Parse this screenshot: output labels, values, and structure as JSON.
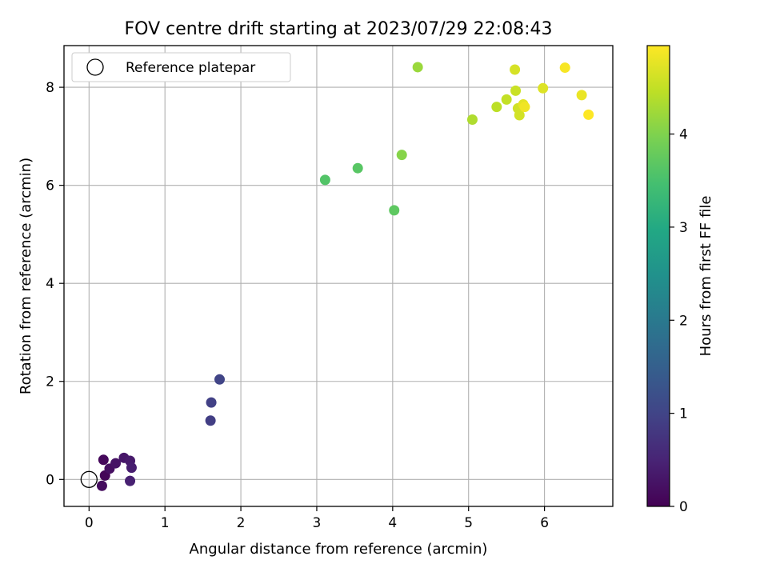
{
  "chart_data": {
    "type": "scatter",
    "title": "FOV centre drift starting at 2023/07/29 22:08:43",
    "xlabel": "Angular distance from reference (arcmin)",
    "ylabel": "Rotation from reference (arcmin)",
    "xlim": [
      -0.33,
      6.9
    ],
    "ylim": [
      -0.55,
      8.85
    ],
    "xticks": [
      0,
      1,
      2,
      3,
      4,
      5,
      6
    ],
    "yticks": [
      0,
      2,
      4,
      6,
      8
    ],
    "grid": true,
    "legend": {
      "placement": "top-left",
      "entries": [
        "Reference platepar"
      ]
    },
    "reference_point": {
      "x": 0,
      "y": 0
    },
    "colorbar": {
      "label": "Hours from first FF file",
      "colormap": "viridis",
      "range": [
        0,
        4.95
      ],
      "ticks": [
        0,
        1,
        2,
        3,
        4
      ]
    },
    "points": [
      {
        "x": 0.19,
        "y": 0.4,
        "c": 0.1
      },
      {
        "x": 0.21,
        "y": 0.08,
        "c": 0.05
      },
      {
        "x": 0.17,
        "y": -0.13,
        "c": 0.15
      },
      {
        "x": 0.27,
        "y": 0.22,
        "c": 0.2
      },
      {
        "x": 0.35,
        "y": 0.33,
        "c": 0.25
      },
      {
        "x": 0.46,
        "y": 0.44,
        "c": 0.3
      },
      {
        "x": 0.54,
        "y": 0.38,
        "c": 0.35
      },
      {
        "x": 0.56,
        "y": 0.24,
        "c": 0.4
      },
      {
        "x": 0.54,
        "y": -0.03,
        "c": 0.45
      },
      {
        "x": 1.6,
        "y": 1.2,
        "c": 0.9
      },
      {
        "x": 1.61,
        "y": 1.57,
        "c": 0.95
      },
      {
        "x": 1.72,
        "y": 2.04,
        "c": 1.0
      },
      {
        "x": 3.11,
        "y": 6.11,
        "c": 3.6
      },
      {
        "x": 3.54,
        "y": 6.35,
        "c": 3.65
      },
      {
        "x": 4.02,
        "y": 5.49,
        "c": 3.7
      },
      {
        "x": 4.12,
        "y": 6.62,
        "c": 4.05
      },
      {
        "x": 4.33,
        "y": 8.41,
        "c": 4.2
      },
      {
        "x": 5.05,
        "y": 7.34,
        "c": 4.35
      },
      {
        "x": 5.37,
        "y": 7.6,
        "c": 4.45
      },
      {
        "x": 5.5,
        "y": 7.75,
        "c": 4.5
      },
      {
        "x": 5.62,
        "y": 7.93,
        "c": 4.55
      },
      {
        "x": 5.61,
        "y": 8.36,
        "c": 4.65
      },
      {
        "x": 5.65,
        "y": 7.57,
        "c": 4.6
      },
      {
        "x": 5.67,
        "y": 7.43,
        "c": 4.62
      },
      {
        "x": 5.72,
        "y": 7.65,
        "c": 4.75
      },
      {
        "x": 5.74,
        "y": 7.6,
        "c": 4.85
      },
      {
        "x": 5.98,
        "y": 7.98,
        "c": 4.7
      },
      {
        "x": 6.27,
        "y": 8.4,
        "c": 4.9
      },
      {
        "x": 6.49,
        "y": 7.84,
        "c": 4.8
      },
      {
        "x": 6.58,
        "y": 7.44,
        "c": 4.95
      }
    ]
  }
}
